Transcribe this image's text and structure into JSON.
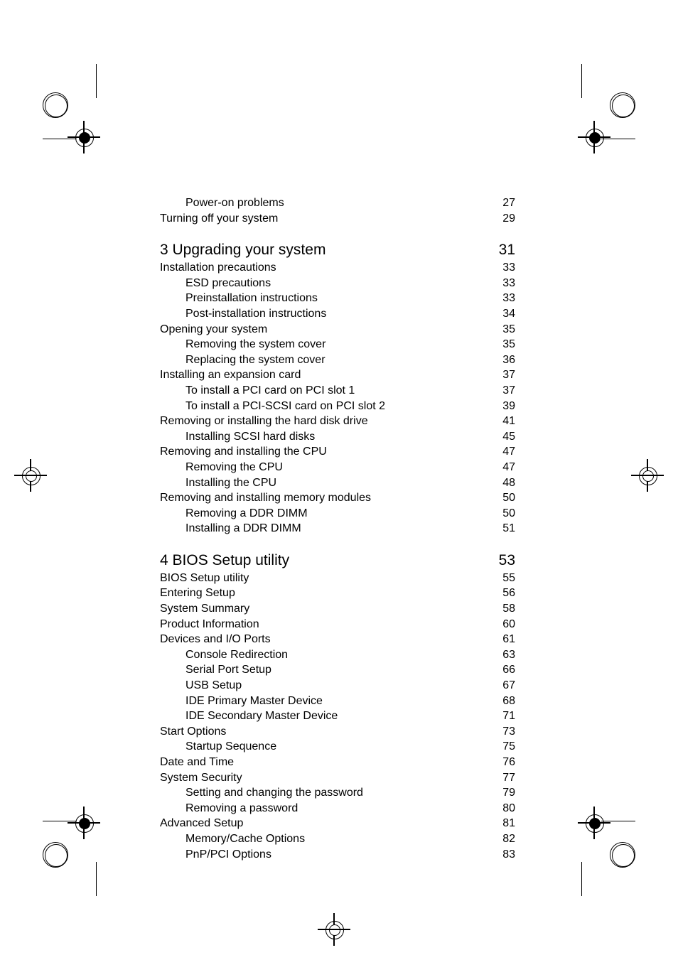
{
  "intro": [
    {
      "label": "Power-on problems",
      "page": "27",
      "indent": 2
    },
    {
      "label": "Turning off your system",
      "page": "29",
      "indent": 1
    }
  ],
  "sections": [
    {
      "heading": {
        "label": "3  Upgrading your system",
        "page": "31"
      },
      "entries": [
        {
          "label": "Installation precautions",
          "page": "33",
          "indent": 1
        },
        {
          "label": "ESD precautions",
          "page": "33",
          "indent": 2
        },
        {
          "label": "Preinstallation instructions",
          "page": "33",
          "indent": 2
        },
        {
          "label": "Post-installation instructions",
          "page": "34",
          "indent": 2
        },
        {
          "label": "Opening your system",
          "page": "35",
          "indent": 1
        },
        {
          "label": "Removing the system cover",
          "page": "35",
          "indent": 2
        },
        {
          "label": "Replacing the system cover",
          "page": "36",
          "indent": 2
        },
        {
          "label": "Installing an expansion card",
          "page": "37",
          "indent": 1
        },
        {
          "label": "To install a PCI card on PCI slot 1",
          "page": "37",
          "indent": 2
        },
        {
          "label": "To install a PCI-SCSI card on PCI slot 2",
          "page": "39",
          "indent": 2
        },
        {
          "label": "Removing or installing the hard disk drive",
          "page": "41",
          "indent": 1
        },
        {
          "label": "Installing SCSI hard disks",
          "page": "45",
          "indent": 2
        },
        {
          "label": "Removing and installing the CPU",
          "page": "47",
          "indent": 1
        },
        {
          "label": "Removing the CPU",
          "page": "47",
          "indent": 2
        },
        {
          "label": "Installing the CPU",
          "page": "48",
          "indent": 2
        },
        {
          "label": "Removing and installing memory modules",
          "page": "50",
          "indent": 1
        },
        {
          "label": "Removing a DDR DIMM",
          "page": "50",
          "indent": 2
        },
        {
          "label": "Installing a DDR DIMM",
          "page": "51",
          "indent": 2
        }
      ]
    },
    {
      "heading": {
        "label": "4  BIOS Setup utility",
        "page": "53"
      },
      "entries": [
        {
          "label": "BIOS Setup utility",
          "page": "55",
          "indent": 1
        },
        {
          "label": "Entering Setup",
          "page": "56",
          "indent": 1
        },
        {
          "label": "System Summary",
          "page": "58",
          "indent": 1
        },
        {
          "label": "Product Information",
          "page": "60",
          "indent": 1
        },
        {
          "label": "Devices and I/O Ports",
          "page": "61",
          "indent": 1
        },
        {
          "label": "Console Redirection",
          "page": "63",
          "indent": 2
        },
        {
          "label": "Serial Port Setup",
          "page": "66",
          "indent": 2
        },
        {
          "label": "USB Setup",
          "page": "67",
          "indent": 2
        },
        {
          "label": "IDE Primary Master Device",
          "page": "68",
          "indent": 2
        },
        {
          "label": "IDE Secondary Master Device",
          "page": "71",
          "indent": 2
        },
        {
          "label": "Start Options",
          "page": "73",
          "indent": 1
        },
        {
          "label": "Startup Sequence",
          "page": "75",
          "indent": 2
        },
        {
          "label": "Date and Time",
          "page": "76",
          "indent": 1
        },
        {
          "label": "System Security",
          "page": "77",
          "indent": 1
        },
        {
          "label": "Setting and changing the password",
          "page": "79",
          "indent": 2
        },
        {
          "label": "Removing a password",
          "page": "80",
          "indent": 2
        },
        {
          "label": "Advanced Setup",
          "page": "81",
          "indent": 1
        },
        {
          "label": "Memory/Cache Options",
          "page": "82",
          "indent": 2
        },
        {
          "label": "PnP/PCI Options",
          "page": "83",
          "indent": 2
        }
      ]
    }
  ]
}
